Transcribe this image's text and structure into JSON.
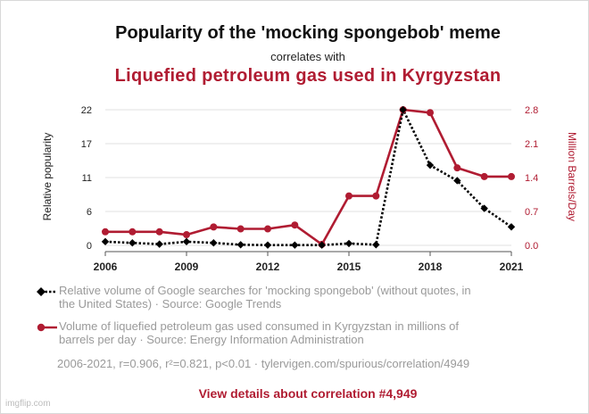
{
  "title": "Popularity of the 'mocking spongebob' meme",
  "correlates_label": "correlates with",
  "subtitle": "Liquefied petroleum gas used in Kyrgyzstan",
  "chart_data": {
    "type": "line",
    "x": [
      2006,
      2007,
      2008,
      2009,
      2010,
      2011,
      2012,
      2013,
      2014,
      2015,
      2016,
      2017,
      2018,
      2019,
      2020,
      2021
    ],
    "xticks": [
      2006,
      2009,
      2012,
      2015,
      2018,
      2021
    ],
    "series": [
      {
        "name": "Relative volume of Google searches for 'mocking spongebob' (without quotes, in the United States) · Source: Google Trends",
        "axis": "left",
        "color": "#000000",
        "style": "dotted",
        "marker": "diamond",
        "values": [
          0.6,
          0.4,
          0.2,
          0.6,
          0.4,
          0.1,
          0.05,
          0.05,
          0.05,
          0.3,
          0.1,
          22,
          13,
          10.5,
          6,
          3
        ]
      },
      {
        "name": "Volume of liquefied petroleum gas used consumed in Kyrgyzstan in millions of barrels per day · Source: Energy Information Administration",
        "axis": "right",
        "color": "#b01c32",
        "style": "solid",
        "marker": "circle",
        "values": [
          0.28,
          0.28,
          0.28,
          0.22,
          0.38,
          0.34,
          0.34,
          0.42,
          0.02,
          1.02,
          1.02,
          2.8,
          2.74,
          1.6,
          1.42,
          1.42
        ]
      }
    ],
    "ylabel_left": "Relative popularity",
    "ylabel_right": "Million Barrels/Day",
    "yticks_left": [
      "0",
      "6",
      "11",
      "17",
      "22"
    ],
    "yticks_right": [
      "0.0",
      "0.7",
      "1.4",
      "2.1",
      "2.8"
    ],
    "ylim_left": [
      0,
      22
    ],
    "ylim_right": [
      0,
      2.8
    ],
    "xlim": [
      2006,
      2021
    ],
    "grid": true,
    "legend_position": "bottom"
  },
  "stats_text": "2006-2021, r=0.906, r²=0.821, p<0.01 · tylervigen.com/spurious/correlation/4949",
  "details_link": "View details about correlation #4,949",
  "watermark": "imgflip.com"
}
